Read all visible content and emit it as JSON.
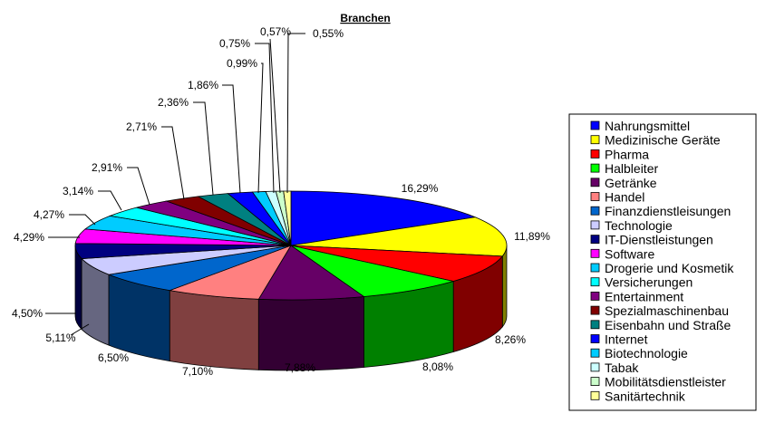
{
  "chart_data": {
    "type": "pie",
    "style": "3d",
    "title": "Branchen",
    "legend_position": "right",
    "slices": [
      {
        "label": "Nahrungsmittel",
        "value": 16.29,
        "display": "16,29%",
        "color": "#0000FF"
      },
      {
        "label": "Medizinische Geräte",
        "value": 11.89,
        "display": "11,89%",
        "color": "#FFFF00"
      },
      {
        "label": "Pharma",
        "value": 8.26,
        "display": "8,26%",
        "color": "#FF0000"
      },
      {
        "label": "Halbleiter",
        "value": 8.08,
        "display": "8,08%",
        "color": "#00FF00"
      },
      {
        "label": "Getränke",
        "value": 7.88,
        "display": "7,88%",
        "color": "#660066"
      },
      {
        "label": "Handel",
        "value": 7.1,
        "display": "7,10%",
        "color": "#FF8080"
      },
      {
        "label": "Finanzdienstleisungen",
        "value": 6.5,
        "display": "6,50%",
        "color": "#0066CC"
      },
      {
        "label": "Technologie",
        "value": 5.11,
        "display": "5,11%",
        "color": "#CCCCFF"
      },
      {
        "label": "IT-Dienstleistungen",
        "value": 4.5,
        "display": "4,50%",
        "color": "#000080"
      },
      {
        "label": "Software",
        "value": 4.29,
        "display": "4,29%",
        "color": "#FF00FF"
      },
      {
        "label": "Drogerie und Kosmetik",
        "value": 4.27,
        "display": "4,27%",
        "color": "#00CCFF"
      },
      {
        "label": "Versicherungen",
        "value": 3.14,
        "display": "3,14%",
        "color": "#00FFFF"
      },
      {
        "label": "Entertainment",
        "value": 2.91,
        "display": "2,91%",
        "color": "#800080"
      },
      {
        "label": "Spezialmaschinenbau",
        "value": 2.71,
        "display": "2,71%",
        "color": "#800000"
      },
      {
        "label": "Eisenbahn und Straße",
        "value": 2.36,
        "display": "2,36%",
        "color": "#008080"
      },
      {
        "label": "Internet",
        "value": 1.86,
        "display": "1,86%",
        "color": "#0000FF"
      },
      {
        "label": "Biotechnologie",
        "value": 0.99,
        "display": "0,99%",
        "color": "#00CCFF"
      },
      {
        "label": "Tabak",
        "value": 0.75,
        "display": "0,75%",
        "color": "#CCFFFF"
      },
      {
        "label": "Mobilitätsdienstleister",
        "value": 0.57,
        "display": "0,57%",
        "color": "#CCFFCC"
      },
      {
        "label": "Sanitärtechnik",
        "value": 0.55,
        "display": "0,55%",
        "color": "#FFFF99"
      }
    ]
  }
}
